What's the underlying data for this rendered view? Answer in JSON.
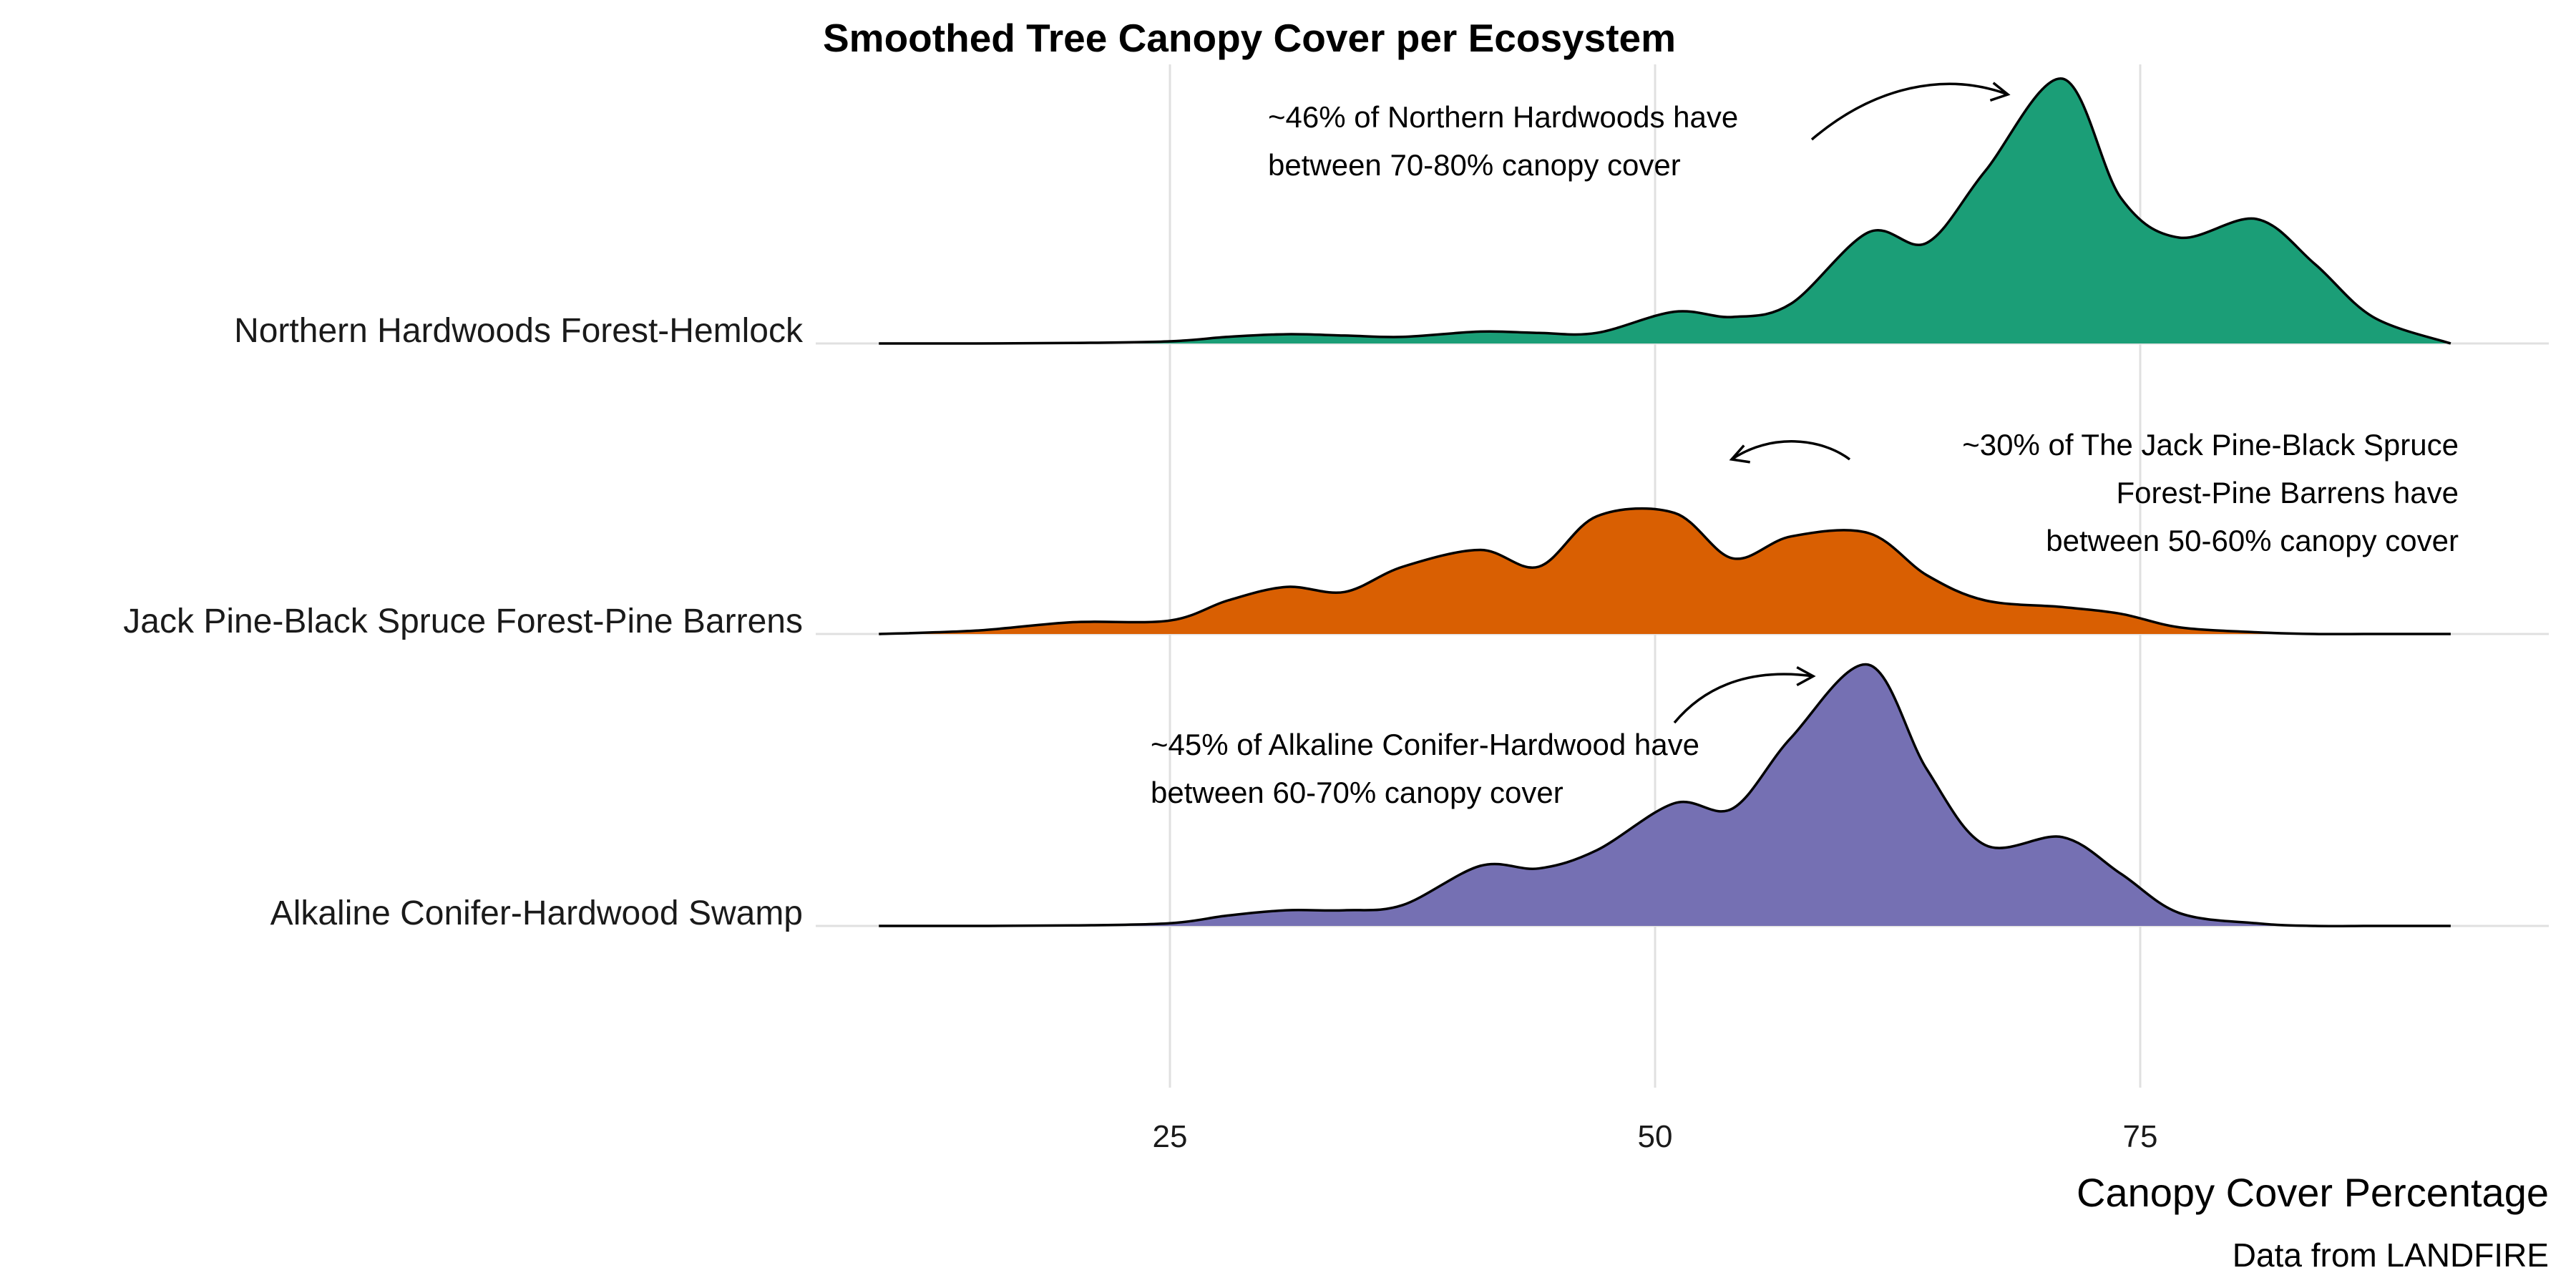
{
  "chart_data": {
    "type": "area",
    "title": "Smoothed Tree Canopy Cover per Ecosystem",
    "xlabel": "Canopy Cover Percentage",
    "caption": "Data from LANDFIRE",
    "xlim": [
      5,
      100
    ],
    "xticks": [
      "25",
      "50",
      "75"
    ],
    "x": [
      10,
      15,
      20,
      25,
      28,
      31,
      34,
      37,
      41,
      44,
      47,
      51,
      54,
      57,
      61,
      64,
      67,
      71,
      74,
      77,
      81,
      84,
      87,
      91
    ],
    "series": [
      {
        "name": "Northern Hardwoods Forest-Hemlock",
        "color": "#1B9E77",
        "density": [
          0.0,
          0.0,
          0.002,
          0.008,
          0.025,
          0.035,
          0.03,
          0.025,
          0.045,
          0.04,
          0.04,
          0.12,
          0.1,
          0.15,
          0.42,
          0.38,
          0.65,
          1.0,
          0.55,
          0.4,
          0.47,
          0.3,
          0.1,
          0.0
        ]
      },
      {
        "name": "Jack Pine-Black Spruce Forest-Pine Barrens",
        "color": "#D95F02",
        "density": [
          0.0,
          0.02,
          0.07,
          0.08,
          0.2,
          0.28,
          0.25,
          0.4,
          0.5,
          0.4,
          0.7,
          0.72,
          0.45,
          0.58,
          0.6,
          0.35,
          0.2,
          0.16,
          0.12,
          0.04,
          0.01,
          0.0,
          0.0,
          0.0
        ]
      },
      {
        "name": "Alkaline Conifer-Hardwood Swamp",
        "color": "#7570B3",
        "density": [
          0.0,
          0.0,
          0.002,
          0.01,
          0.04,
          0.06,
          0.06,
          0.08,
          0.23,
          0.22,
          0.29,
          0.47,
          0.45,
          0.72,
          1.0,
          0.6,
          0.31,
          0.34,
          0.2,
          0.05,
          0.01,
          0.0,
          0.0,
          0.0
        ]
      }
    ],
    "annotations": [
      {
        "lines": [
          "~46% of Northern Hardwoods have",
          "between 70-80% canopy cover"
        ]
      },
      {
        "lines": [
          "~30% of The Jack Pine-Black Spruce",
          "Forest-Pine Barrens have",
          "between 50-60% canopy cover"
        ]
      },
      {
        "lines": [
          "~45% of Alkaline Conifer-Hardwood have",
          "between 60-70% canopy cover"
        ]
      }
    ]
  }
}
